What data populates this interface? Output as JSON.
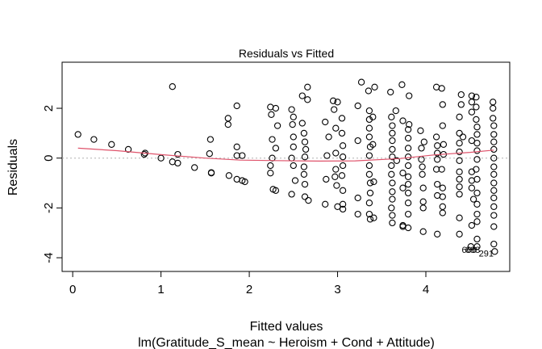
{
  "chart_data": {
    "type": "scatter",
    "title": "Residuals vs Fitted",
    "xlabel": "Fitted values",
    "subtitle": "lm(Gratitude_S_mean ~ Heroism + Cond + Attitude)",
    "ylabel": "Residuals",
    "xlim": [
      -0.12,
      4.95
    ],
    "ylim": [
      -4.55,
      3.85
    ],
    "x_ticks": [
      0,
      1,
      2,
      3,
      4
    ],
    "y_ticks": [
      -4,
      -2,
      0,
      2
    ],
    "x_tick_labels": [
      "0",
      "1",
      "2",
      "3",
      "4"
    ],
    "y_tick_labels": [
      "-4",
      "-2",
      "0",
      "2"
    ],
    "reference_line_y": 0,
    "colors": {
      "points": "#000000",
      "smooth": "#DF536B",
      "reference": "#b0b0b0"
    },
    "points": [
      [
        0.06,
        0.95
      ],
      [
        0.24,
        0.75
      ],
      [
        0.44,
        0.55
      ],
      [
        0.63,
        0.35
      ],
      [
        0.82,
        0.2
      ],
      [
        0.81,
        0.15
      ],
      [
        1.0,
        0.0
      ],
      [
        1.13,
        2.87
      ],
      [
        1.13,
        -0.15
      ],
      [
        1.19,
        0.15
      ],
      [
        1.19,
        -0.2
      ],
      [
        1.38,
        -0.38
      ],
      [
        1.56,
        0.75
      ],
      [
        1.57,
        -0.58
      ],
      [
        1.57,
        -0.6
      ],
      [
        1.55,
        0.18
      ],
      [
        1.76,
        1.6
      ],
      [
        1.76,
        1.35
      ],
      [
        1.77,
        -0.7
      ],
      [
        1.86,
        2.1
      ],
      [
        1.86,
        0.45
      ],
      [
        1.86,
        0.1
      ],
      [
        1.86,
        -0.85
      ],
      [
        1.92,
        -0.9
      ],
      [
        1.92,
        0.1
      ],
      [
        1.95,
        -0.95
      ],
      [
        2.24,
        2.05
      ],
      [
        2.25,
        1.75
      ],
      [
        2.26,
        0.75
      ],
      [
        2.26,
        0.0
      ],
      [
        2.24,
        -0.3
      ],
      [
        2.24,
        -0.6
      ],
      [
        2.27,
        -1.25
      ],
      [
        2.3,
        -1.3
      ],
      [
        2.3,
        0.4
      ],
      [
        2.32,
        1.3
      ],
      [
        2.3,
        2.0
      ],
      [
        2.48,
        1.95
      ],
      [
        2.5,
        1.65
      ],
      [
        2.49,
        1.35
      ],
      [
        2.5,
        0.85
      ],
      [
        2.5,
        0.45
      ],
      [
        2.48,
        0.0
      ],
      [
        2.5,
        -0.3
      ],
      [
        2.52,
        -0.9
      ],
      [
        2.48,
        -1.45
      ],
      [
        2.6,
        2.5
      ],
      [
        2.6,
        1.4
      ],
      [
        2.62,
        1.0
      ],
      [
        2.63,
        0.65
      ],
      [
        2.64,
        0.35
      ],
      [
        2.63,
        0.05
      ],
      [
        2.62,
        -0.35
      ],
      [
        2.62,
        -0.65
      ],
      [
        2.63,
        -1.05
      ],
      [
        2.63,
        -1.55
      ],
      [
        2.67,
        -1.7
      ],
      [
        2.66,
        2.85
      ],
      [
        2.66,
        2.35
      ],
      [
        2.86,
        -1.85
      ],
      [
        2.86,
        1.45
      ],
      [
        2.87,
        -0.85
      ],
      [
        2.88,
        0.1
      ],
      [
        2.9,
        0.85
      ],
      [
        2.95,
        2.3
      ],
      [
        2.96,
        1.95
      ],
      [
        2.98,
        1.2
      ],
      [
        2.98,
        0.2
      ],
      [
        2.98,
        -0.45
      ],
      [
        2.97,
        -0.75
      ],
      [
        2.99,
        -1.1
      ],
      [
        3.0,
        -1.95
      ],
      [
        3.0,
        2.25
      ],
      [
        3.05,
        1.6
      ],
      [
        3.05,
        1.0
      ],
      [
        3.06,
        0.5
      ],
      [
        3.06,
        0.05
      ],
      [
        3.06,
        -0.3
      ],
      [
        3.05,
        -0.7
      ],
      [
        3.06,
        -1.3
      ],
      [
        3.06,
        -1.85
      ],
      [
        3.06,
        -2.05
      ],
      [
        3.23,
        2.1
      ],
      [
        3.23,
        0.7
      ],
      [
        3.23,
        -1.6
      ],
      [
        3.23,
        -2.25
      ],
      [
        3.27,
        3.05
      ],
      [
        3.35,
        2.7
      ],
      [
        3.36,
        1.9
      ],
      [
        3.36,
        1.55
      ],
      [
        3.36,
        1.2
      ],
      [
        3.36,
        0.85
      ],
      [
        3.37,
        0.45
      ],
      [
        3.36,
        0.1
      ],
      [
        3.36,
        -0.3
      ],
      [
        3.36,
        -0.65
      ],
      [
        3.37,
        -1.0
      ],
      [
        3.37,
        -1.4
      ],
      [
        3.36,
        -1.8
      ],
      [
        3.36,
        -2.25
      ],
      [
        3.37,
        -2.45
      ],
      [
        3.41,
        -2.4
      ],
      [
        3.42,
        2.85
      ],
      [
        3.4,
        1.65
      ],
      [
        3.4,
        0.55
      ],
      [
        3.41,
        -0.95
      ],
      [
        3.6,
        2.65
      ],
      [
        3.61,
        1.65
      ],
      [
        3.62,
        1.3
      ],
      [
        3.62,
        1.0
      ],
      [
        3.62,
        0.7
      ],
      [
        3.62,
        0.35
      ],
      [
        3.62,
        0.05
      ],
      [
        3.61,
        -0.3
      ],
      [
        3.61,
        -0.65
      ],
      [
        3.62,
        -1.0
      ],
      [
        3.62,
        -1.35
      ],
      [
        3.62,
        -1.65
      ],
      [
        3.61,
        -2.0
      ],
      [
        3.62,
        -2.3
      ],
      [
        3.62,
        -2.6
      ],
      [
        3.66,
        1.9
      ],
      [
        3.67,
        -0.1
      ],
      [
        3.73,
        2.95
      ],
      [
        3.74,
        1.5
      ],
      [
        3.74,
        -0.6
      ],
      [
        3.74,
        -1.2
      ],
      [
        3.74,
        -2.7
      ],
      [
        3.74,
        -2.75
      ],
      [
        3.8,
        1.15
      ],
      [
        3.8,
        0.8
      ],
      [
        3.8,
        0.4
      ],
      [
        3.8,
        0.05
      ],
      [
        3.8,
        -0.3
      ],
      [
        3.8,
        -0.75
      ],
      [
        3.8,
        -1.05
      ],
      [
        3.8,
        -1.4
      ],
      [
        3.8,
        -1.8
      ],
      [
        3.8,
        -2.25
      ],
      [
        3.8,
        -2.8
      ],
      [
        3.81,
        2.5
      ],
      [
        3.81,
        1.35
      ],
      [
        3.94,
        1.1
      ],
      [
        3.95,
        0.4
      ],
      [
        3.95,
        -0.05
      ],
      [
        3.96,
        -0.35
      ],
      [
        3.96,
        -0.65
      ],
      [
        3.97,
        -1.2
      ],
      [
        3.97,
        -1.75
      ],
      [
        3.97,
        -2.0
      ],
      [
        3.97,
        -2.95
      ],
      [
        3.98,
        0.65
      ],
      [
        4.12,
        2.85
      ],
      [
        4.12,
        0.85
      ],
      [
        4.13,
        0.5
      ],
      [
        4.13,
        0.2
      ],
      [
        4.13,
        -0.05
      ],
      [
        4.12,
        -0.45
      ],
      [
        4.13,
        -1.05
      ],
      [
        4.13,
        -1.5
      ],
      [
        4.13,
        -3.05
      ],
      [
        4.18,
        2.8
      ],
      [
        4.19,
        2.15
      ],
      [
        4.19,
        1.3
      ],
      [
        4.2,
        0.55
      ],
      [
        4.2,
        0.15
      ],
      [
        4.18,
        -0.45
      ],
      [
        4.19,
        -1.2
      ],
      [
        4.19,
        -1.55
      ],
      [
        4.19,
        -1.95
      ],
      [
        4.19,
        -2.2
      ],
      [
        4.38,
        1.65
      ],
      [
        4.38,
        1.0
      ],
      [
        4.38,
        0.6
      ],
      [
        4.38,
        0.25
      ],
      [
        4.38,
        -0.1
      ],
      [
        4.38,
        -0.55
      ],
      [
        4.38,
        -0.85
      ],
      [
        4.38,
        -1.15
      ],
      [
        4.38,
        -1.45
      ],
      [
        4.38,
        -2.4
      ],
      [
        4.38,
        -3.05
      ],
      [
        4.4,
        2.55
      ],
      [
        4.4,
        2.15
      ],
      [
        4.42,
        0.85
      ],
      [
        4.52,
        2.5
      ],
      [
        4.52,
        2.25
      ],
      [
        4.52,
        1.85
      ],
      [
        4.52,
        0.7
      ],
      [
        4.52,
        -0.55
      ],
      [
        4.52,
        -0.9
      ],
      [
        4.52,
        -1.2
      ],
      [
        4.54,
        -1.65
      ],
      [
        4.52,
        -2.7
      ],
      [
        4.51,
        -3.55
      ],
      [
        4.57,
        2.45
      ],
      [
        4.57,
        2.05
      ],
      [
        4.57,
        1.55
      ],
      [
        4.58,
        1.25
      ],
      [
        4.58,
        0.95
      ],
      [
        4.58,
        0.6
      ],
      [
        4.58,
        0.3
      ],
      [
        4.58,
        -0.05
      ],
      [
        4.57,
        -0.45
      ],
      [
        4.58,
        -0.85
      ],
      [
        4.58,
        -1.4
      ],
      [
        4.58,
        -1.85
      ],
      [
        4.58,
        -2.25
      ],
      [
        4.58,
        -2.55
      ],
      [
        4.58,
        -3.25
      ],
      [
        4.58,
        -3.55
      ],
      [
        4.76,
        2.25
      ],
      [
        4.76,
        2.0
      ],
      [
        4.76,
        1.6
      ],
      [
        4.77,
        1.3
      ],
      [
        4.77,
        0.95
      ],
      [
        4.77,
        0.65
      ],
      [
        4.77,
        0.35
      ],
      [
        4.77,
        0.0
      ],
      [
        4.77,
        -0.35
      ],
      [
        4.77,
        -0.65
      ],
      [
        4.77,
        -1.0
      ],
      [
        4.77,
        -1.3
      ],
      [
        4.77,
        -1.6
      ],
      [
        4.77,
        -1.95
      ],
      [
        4.77,
        -2.3
      ],
      [
        4.77,
        -2.75
      ],
      [
        4.77,
        -3.45
      ],
      [
        4.78,
        -3.75
      ]
    ],
    "smooth": {
      "x": [
        0.06,
        0.5,
        1.0,
        1.5,
        1.9,
        2.3,
        2.8,
        3.2,
        3.7,
        4.1,
        4.5,
        4.77
      ],
      "y": [
        0.4,
        0.3,
        0.14,
        0.0,
        -0.08,
        -0.1,
        -0.12,
        -0.11,
        -0.02,
        0.13,
        0.23,
        0.32
      ]
    },
    "annotations": [
      {
        "label": "606",
        "x": 4.49,
        "y": -3.68,
        "anchor": "middle"
      },
      {
        "label": "688",
        "x": 4.53,
        "y": -3.68,
        "anchor": "middle"
      },
      {
        "label": "291",
        "x": 4.6,
        "y": -3.82,
        "anchor": "start"
      }
    ]
  }
}
